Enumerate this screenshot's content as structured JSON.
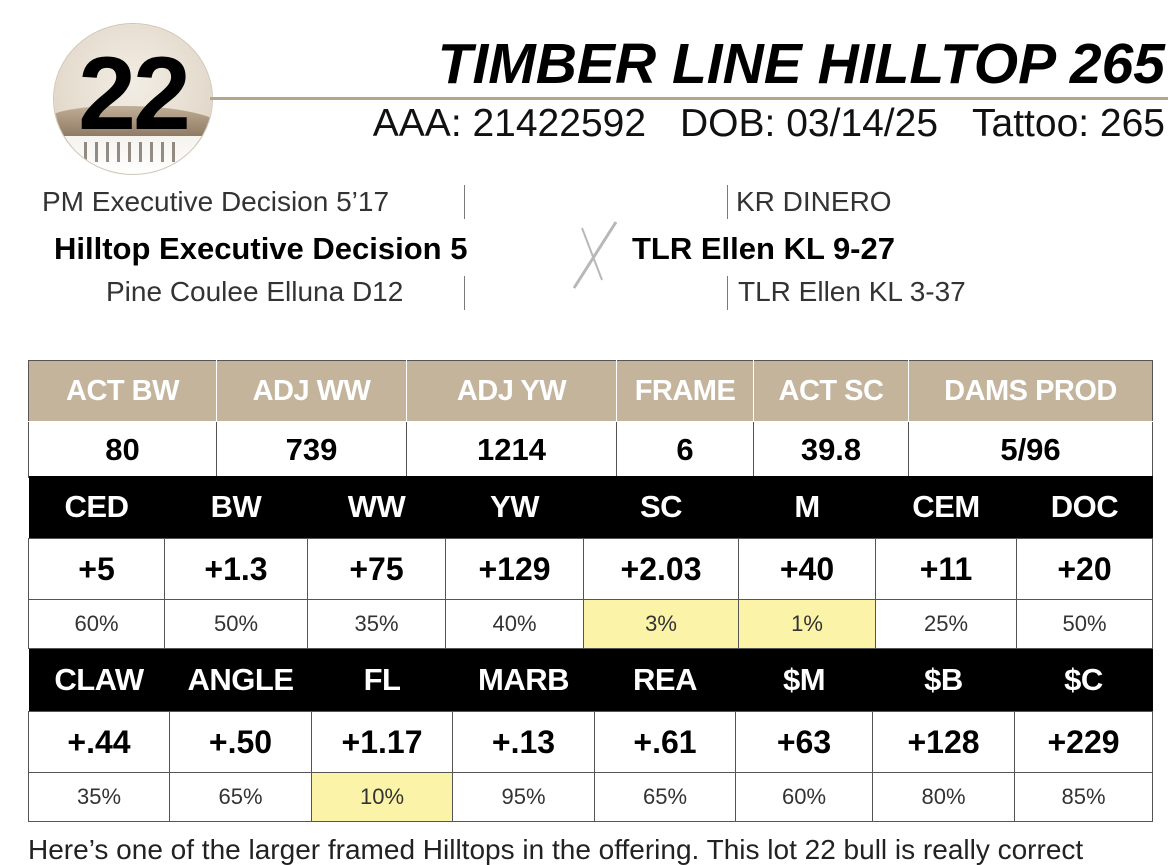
{
  "header": {
    "lot_number": "22",
    "bull_name": "TIMBER LINE HILLTOP 265",
    "aaa": "AAA: 21422592",
    "dob": "DOB: 03/14/25",
    "tattoo": "Tattoo: 265"
  },
  "pedigree": {
    "sire_sire": "PM Executive Decision 5’17",
    "sire": "Hilltop Executive Decision 5",
    "sire_dam": "Pine Coulee Elluna D12",
    "dam_sire": "KR DINERO",
    "dam": "TLR Ellen KL 9-27",
    "dam_dam": "TLR Ellen KL 3-37"
  },
  "performance": {
    "headers": [
      "ACT BW",
      "ADJ WW",
      "ADJ YW",
      "FRAME",
      "ACT SC",
      "DAMS PROD"
    ],
    "values": [
      "80",
      "739",
      "1214",
      "6",
      "39.8",
      "5/96"
    ]
  },
  "epd1": {
    "headers": [
      "CED",
      "BW",
      "WW",
      "YW",
      "SC",
      "M",
      "CEM",
      "DOC"
    ],
    "values": [
      "+5",
      "+1.3",
      "+75",
      "+129",
      "+2.03",
      "+40",
      "+11",
      "+20"
    ],
    "percentiles": [
      "60%",
      "50%",
      "35%",
      "40%",
      "3%",
      "1%",
      "25%",
      "50%"
    ]
  },
  "epd2": {
    "headers": [
      "CLAW",
      "ANGLE",
      "FL",
      "MARB",
      "REA",
      "$M",
      "$B",
      "$C"
    ],
    "values": [
      "+.44",
      "+.50",
      "+1.17",
      "+.13",
      "+.61",
      "+63",
      "+128",
      "+229"
    ],
    "percentiles": [
      "35%",
      "65%",
      "10%",
      "95%",
      "65%",
      "60%",
      "80%",
      "85%"
    ]
  },
  "description": "Here’s one of the larger framed Hilltops in the offering. This lot 22 bull is really correct",
  "colors": {
    "header_tan": "#c4b49c",
    "highlight_yellow": "#fbf4a8",
    "rule_tan": "#b5a58d"
  }
}
